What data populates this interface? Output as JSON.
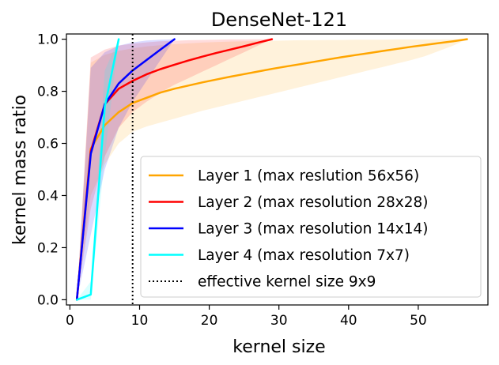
{
  "chart_data": {
    "type": "line",
    "title": "DenseNet-121",
    "xlabel": "kernel size",
    "ylabel": "kernel mass ratio",
    "xlim": [
      -0.5,
      60
    ],
    "ylim": [
      -0.02,
      1.02
    ],
    "xticks": [
      0,
      10,
      20,
      30,
      40,
      50
    ],
    "yticks": [
      0.0,
      0.2,
      0.4,
      0.6,
      0.8,
      1.0
    ],
    "xtick_labels": [
      "0",
      "10",
      "20",
      "30",
      "40",
      "50"
    ],
    "ytick_labels": [
      "0.0",
      "0.2",
      "0.4",
      "0.6",
      "0.8",
      "1.0"
    ],
    "grid": false,
    "legend_position": "lower-right",
    "series": [
      {
        "name": "Layer 1 (max reslution 56x56)",
        "color": "#ffa500",
        "x": [
          1,
          3,
          5,
          7,
          9,
          11,
          13,
          15,
          17,
          19,
          21,
          23,
          25,
          27,
          29,
          31,
          33,
          35,
          37,
          39,
          41,
          43,
          45,
          47,
          49,
          51,
          53,
          55,
          57
        ],
        "y": [
          0.0,
          0.58,
          0.67,
          0.72,
          0.755,
          0.775,
          0.795,
          0.81,
          0.822,
          0.834,
          0.845,
          0.856,
          0.866,
          0.876,
          0.886,
          0.895,
          0.904,
          0.913,
          0.922,
          0.931,
          0.939,
          0.947,
          0.955,
          0.963,
          0.971,
          0.978,
          0.985,
          0.992,
          1.0
        ],
        "band_lower": [
          0.0,
          0.4,
          0.52,
          0.6,
          0.645,
          0.665,
          0.68,
          0.695,
          0.71,
          0.725,
          0.738,
          0.751,
          0.764,
          0.777,
          0.79,
          0.803,
          0.816,
          0.829,
          0.842,
          0.855,
          0.868,
          0.881,
          0.894,
          0.907,
          0.92,
          0.935,
          0.955,
          0.975,
          1.0
        ],
        "band_upper": [
          0.0,
          0.91,
          0.94,
          0.955,
          0.965,
          0.972,
          0.977,
          0.981,
          0.984,
          0.987,
          0.989,
          0.991,
          0.992,
          0.993,
          0.994,
          0.995,
          0.996,
          0.996,
          0.997,
          0.997,
          0.998,
          0.998,
          0.998,
          0.999,
          0.999,
          0.999,
          0.999,
          1.0,
          1.0
        ]
      },
      {
        "name": "Layer 2 (max resolution 28x28)",
        "color": "#ff0000",
        "x": [
          1,
          3,
          5,
          7,
          9,
          11,
          13,
          15,
          17,
          19,
          21,
          23,
          25,
          27,
          29
        ],
        "y": [
          0.0,
          0.57,
          0.75,
          0.81,
          0.84,
          0.865,
          0.885,
          0.902,
          0.918,
          0.933,
          0.947,
          0.96,
          0.973,
          0.987,
          1.0
        ],
        "band_lower": [
          0.0,
          0.35,
          0.55,
          0.66,
          0.72,
          0.76,
          0.795,
          0.825,
          0.85,
          0.875,
          0.9,
          0.925,
          0.95,
          0.975,
          1.0
        ],
        "band_upper": [
          0.0,
          0.93,
          0.96,
          0.975,
          0.983,
          0.988,
          0.992,
          0.994,
          0.996,
          0.997,
          0.998,
          0.999,
          0.999,
          1.0,
          1.0
        ]
      },
      {
        "name": "Layer 3 (max resolution 14x14)",
        "color": "#0000ff",
        "x": [
          1,
          3,
          5,
          7,
          9,
          11,
          13,
          15
        ],
        "y": [
          0.0,
          0.56,
          0.75,
          0.83,
          0.88,
          0.92,
          0.96,
          1.0
        ],
        "band_lower": [
          0.0,
          0.25,
          0.5,
          0.66,
          0.76,
          0.84,
          0.92,
          1.0
        ],
        "band_upper": [
          0.0,
          0.89,
          0.95,
          0.975,
          0.988,
          0.995,
          0.998,
          1.0
        ]
      },
      {
        "name": "Layer 4 (max resolution 7x7)",
        "color": "#00ffff",
        "x": [
          1,
          3,
          5,
          7
        ],
        "y": [
          0.0,
          0.02,
          0.74,
          1.0
        ],
        "band_lower": [
          0.0,
          0.0,
          0.55,
          1.0
        ],
        "band_upper": [
          0.0,
          0.07,
          0.88,
          1.0
        ]
      }
    ],
    "vline": {
      "x": 9,
      "label": "effective kernel size 9x9",
      "color": "#000000",
      "style": "dotted"
    }
  }
}
